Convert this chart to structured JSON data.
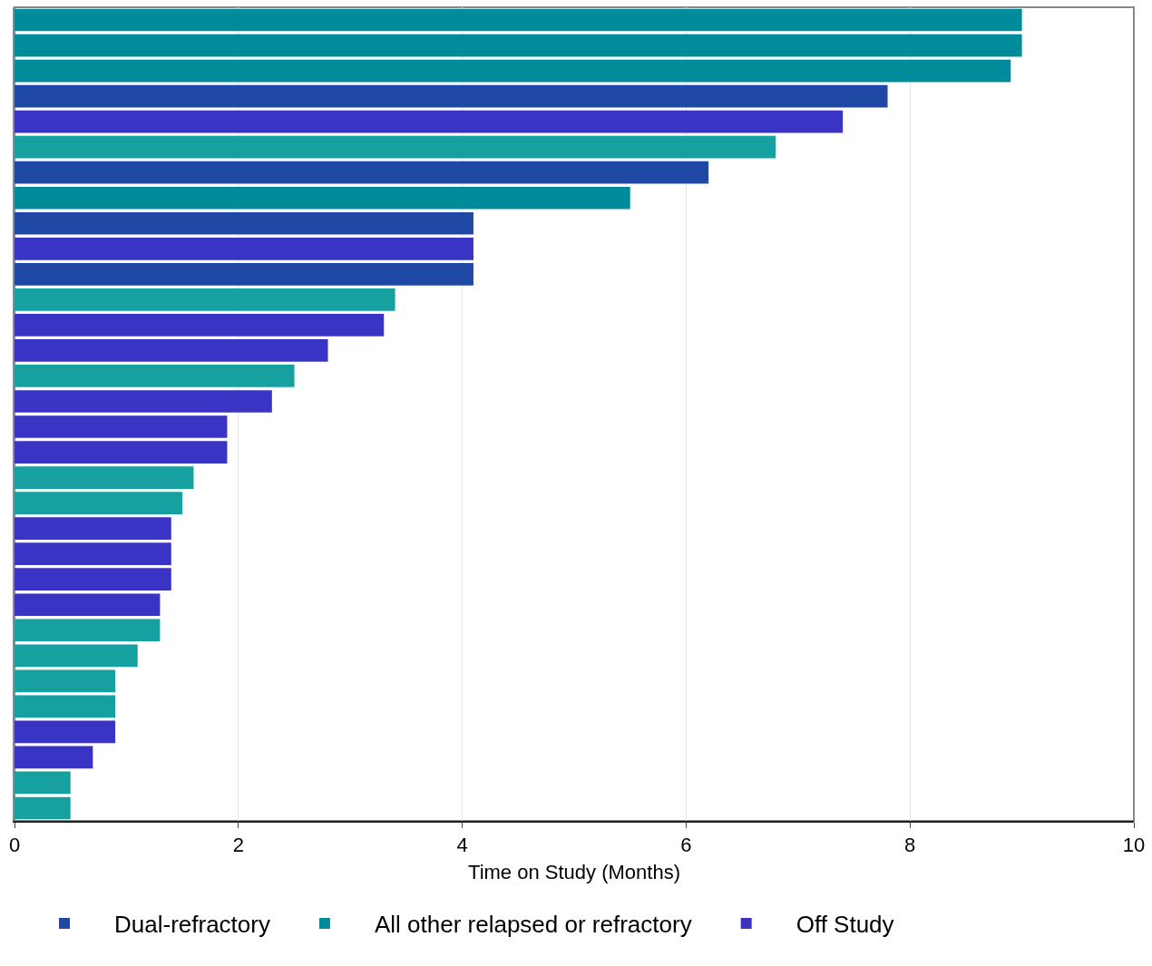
{
  "chart_data": {
    "type": "bar",
    "orientation": "horizontal",
    "xlabel": "Time on Study (Months)",
    "categories": [
      null,
      null,
      null,
      null,
      null,
      null,
      null,
      null,
      null,
      null,
      null,
      null,
      null,
      null,
      null,
      null,
      null,
      null,
      null,
      null,
      null,
      null,
      null,
      null,
      null,
      null,
      null,
      null,
      null,
      null,
      null,
      null
    ],
    "series": [
      {
        "name": "Dual-refractory",
        "color": "#1f48a4",
        "values": [
          null,
          null,
          null,
          7.8,
          null,
          null,
          6.2,
          null,
          4.1,
          null,
          4.1,
          null,
          null,
          null,
          null,
          null,
          null,
          null,
          null,
          null,
          null,
          null,
          null,
          null,
          null,
          null,
          null,
          null,
          null,
          null,
          null,
          null
        ]
      },
      {
        "name": "All other relapsed or refractory",
        "color": "#008b9a",
        "values": [
          9.0,
          9.0,
          8.9,
          null,
          null,
          null,
          null,
          5.5,
          null,
          null,
          null,
          null,
          null,
          null,
          null,
          null,
          null,
          null,
          null,
          null,
          null,
          null,
          null,
          null,
          null,
          null,
          null,
          null,
          null,
          null,
          null,
          null
        ]
      },
      {
        "name": "Off Study",
        "colors": [
          "#3a34c4",
          "#3a34c4",
          "#3a34c4",
          "#3a34c4",
          "#3a34c4",
          "#16a0a0",
          "#3a34c4",
          "#3a34c4",
          "#3a34c4",
          "#3a34c4",
          "#3a34c4",
          "#16a0a0",
          "#3a34c4",
          "#3a34c4",
          "#16a0a0",
          "#3a34c4",
          "#3a34c4",
          "#3a34c4",
          "#16a0a0",
          "#16a0a0",
          "#3a34c4",
          "#3a34c4",
          "#3a34c4",
          "#3a34c4",
          "#16a0a0",
          "#16a0a0",
          "#16a0a0",
          "#16a0a0",
          "#3a34c4",
          "#3a34c4",
          "#16a0a0",
          "#16a0a0"
        ],
        "values": [
          null,
          null,
          null,
          null,
          7.4,
          6.8,
          null,
          null,
          null,
          4.1,
          null,
          3.4,
          3.3,
          2.8,
          2.5,
          2.3,
          1.9,
          1.9,
          1.6,
          1.5,
          1.4,
          1.4,
          1.4,
          1.3,
          1.3,
          1.1,
          0.9,
          0.9,
          0.9,
          0.7,
          0.5,
          0.5
        ]
      }
    ],
    "xlim": [
      0,
      10
    ],
    "xticks": [
      0,
      2,
      4,
      6,
      8,
      10
    ],
    "grid": "x",
    "tick_labels": "x",
    "legend": "bottom"
  }
}
